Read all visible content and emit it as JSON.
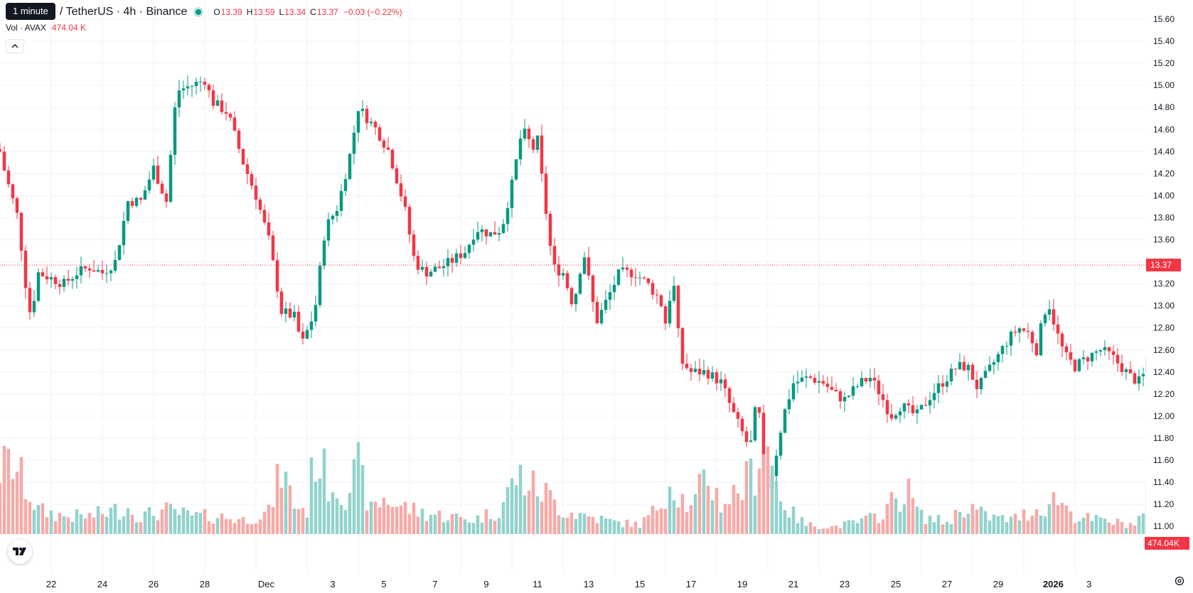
{
  "header": {
    "tooltip": "1 minute",
    "symbol": "/ TetherUS · 4h · Binance",
    "o_label": "O",
    "o_value": "13.39",
    "h_label": "H",
    "h_value": "13.59",
    "l_label": "L",
    "l_value": "13.34",
    "c_label": "C",
    "c_value": "13.37",
    "change": "−0.03 (−0.22%)"
  },
  "volume_legend": {
    "label": "Vol · AVAX",
    "value": "474.04 K"
  },
  "colors": {
    "up": "#089981",
    "down": "#f23645",
    "up_vol": "#92d2cc",
    "down_vol": "#f7a9a7",
    "grid": "#f0f3fa",
    "text": "#131722"
  },
  "icons": {
    "collapse": "chevron-up-icon",
    "logo": "tradingview-logo-icon",
    "settings": "gear-icon"
  },
  "chart_data": {
    "type": "candlestick",
    "interval": "4h",
    "y_axis": {
      "min": 10.9,
      "max": 15.7,
      "ticks": [
        "15.60",
        "15.40",
        "15.20",
        "15.00",
        "14.80",
        "14.60",
        "14.40",
        "14.20",
        "14.00",
        "13.80",
        "13.60",
        "13.40",
        "13.20",
        "13.00",
        "12.80",
        "12.60",
        "12.40",
        "12.20",
        "12.00",
        "11.80",
        "11.60",
        "11.40",
        "11.20",
        "11.00"
      ]
    },
    "x_axis": {
      "labels": [
        "22",
        "24",
        "26",
        "28",
        "Dec",
        "3",
        "5",
        "7",
        "9",
        "11",
        "13",
        "15",
        "17",
        "19",
        "21",
        "23",
        "25",
        "27",
        "29",
        "2026",
        "3"
      ]
    },
    "last_price": "13.37",
    "last_volume": "474.04K",
    "grid": true,
    "anchors": [
      [
        20.0,
        14.4
      ],
      [
        20.2,
        14.2
      ],
      [
        20.7,
        13.8
      ],
      [
        21.0,
        13.2
      ],
      [
        21.2,
        12.9
      ],
      [
        21.5,
        13.3
      ],
      [
        22.0,
        13.25
      ],
      [
        22.5,
        13.2
      ],
      [
        23.0,
        13.3
      ],
      [
        23.5,
        13.35
      ],
      [
        24.0,
        13.3
      ],
      [
        24.5,
        13.4
      ],
      [
        25.0,
        13.95
      ],
      [
        25.5,
        13.95
      ],
      [
        26.0,
        14.25
      ],
      [
        26.5,
        13.95
      ],
      [
        26.9,
        14.95
      ],
      [
        27.5,
        15.0
      ],
      [
        28.0,
        15.05
      ],
      [
        28.3,
        14.85
      ],
      [
        28.9,
        14.75
      ],
      [
        29.5,
        14.3
      ],
      [
        30.0,
        14.0
      ],
      [
        30.5,
        13.6
      ],
      [
        31.0,
        12.95
      ],
      [
        31.5,
        12.9
      ],
      [
        31.8,
        12.65
      ],
      [
        32.3,
        12.95
      ],
      [
        32.7,
        13.7
      ],
      [
        33.2,
        13.9
      ],
      [
        33.7,
        14.4
      ],
      [
        34.0,
        14.8
      ],
      [
        34.7,
        14.6
      ],
      [
        35.2,
        14.4
      ],
      [
        35.8,
        13.9
      ],
      [
        36.2,
        13.4
      ],
      [
        36.6,
        13.3
      ],
      [
        37.2,
        13.35
      ],
      [
        37.6,
        13.4
      ],
      [
        38.2,
        13.5
      ],
      [
        38.6,
        13.7
      ],
      [
        39.2,
        13.65
      ],
      [
        39.6,
        13.7
      ],
      [
        40.0,
        14.1
      ],
      [
        40.4,
        14.6
      ],
      [
        40.9,
        14.4
      ],
      [
        41.0,
        14.5
      ],
      [
        41.2,
        14.1
      ],
      [
        41.6,
        13.35
      ],
      [
        42.0,
        13.3
      ],
      [
        42.4,
        13.0
      ],
      [
        42.8,
        13.5
      ],
      [
        43.3,
        12.85
      ],
      [
        43.8,
        13.1
      ],
      [
        44.2,
        13.3
      ],
      [
        44.8,
        13.3
      ],
      [
        45.3,
        13.2
      ],
      [
        45.8,
        13.05
      ],
      [
        46.0,
        12.85
      ],
      [
        46.3,
        13.25
      ],
      [
        46.6,
        12.5
      ],
      [
        47.0,
        12.4
      ],
      [
        47.6,
        12.4
      ],
      [
        48.2,
        12.3
      ],
      [
        48.6,
        12.05
      ],
      [
        49.0,
        11.85
      ],
      [
        49.3,
        11.7
      ],
      [
        49.6,
        12.2
      ],
      [
        49.9,
        11.3
      ],
      [
        50.2,
        11.5
      ],
      [
        50.6,
        12.0
      ],
      [
        51.0,
        12.3
      ],
      [
        51.6,
        12.35
      ],
      [
        52.2,
        12.3
      ],
      [
        52.6,
        12.2
      ],
      [
        53.0,
        12.15
      ],
      [
        53.6,
        12.3
      ],
      [
        54.0,
        12.35
      ],
      [
        54.4,
        12.2
      ],
      [
        54.8,
        12.0
      ],
      [
        55.2,
        12.1
      ],
      [
        55.8,
        12.0
      ],
      [
        56.4,
        12.2
      ],
      [
        56.8,
        12.3
      ],
      [
        57.4,
        12.45
      ],
      [
        57.8,
        12.45
      ],
      [
        58.2,
        12.25
      ],
      [
        58.6,
        12.4
      ],
      [
        59.0,
        12.55
      ],
      [
        59.4,
        12.7
      ],
      [
        59.8,
        12.8
      ],
      [
        60.2,
        12.75
      ],
      [
        60.5,
        12.6
      ],
      [
        60.8,
        12.95
      ],
      [
        61.0,
        13.0
      ],
      [
        61.3,
        12.75
      ],
      [
        61.6,
        12.55
      ],
      [
        62.0,
        12.45
      ],
      [
        62.6,
        12.55
      ],
      [
        63.0,
        12.6
      ],
      [
        63.4,
        12.55
      ],
      [
        63.8,
        12.45
      ],
      [
        64.2,
        12.35
      ],
      [
        64.6,
        12.3
      ],
      [
        64.9,
        12.6
      ],
      [
        65.1,
        13.4
      ],
      [
        65.5,
        13.6
      ],
      [
        65.8,
        13.7
      ],
      [
        66.0,
        13.55
      ],
      [
        66.3,
        13.37
      ]
    ],
    "volume_anchors": [
      [
        20.0,
        0.55
      ],
      [
        20.5,
        0.6
      ],
      [
        21.0,
        0.4
      ],
      [
        21.5,
        0.2
      ],
      [
        22.5,
        0.15
      ],
      [
        23.5,
        0.15
      ],
      [
        24.5,
        0.2
      ],
      [
        25.0,
        0.22
      ],
      [
        25.5,
        0.15
      ],
      [
        26.5,
        0.2
      ],
      [
        27.5,
        0.15
      ],
      [
        28.5,
        0.15
      ],
      [
        29.5,
        0.12
      ],
      [
        30.5,
        0.18
      ],
      [
        31.0,
        0.55
      ],
      [
        31.5,
        0.25
      ],
      [
        32.0,
        0.2
      ],
      [
        32.3,
        0.7
      ],
      [
        32.8,
        0.45
      ],
      [
        33.5,
        0.35
      ],
      [
        34.0,
        0.55
      ],
      [
        34.5,
        0.2
      ],
      [
        35.0,
        0.3
      ],
      [
        35.5,
        0.25
      ],
      [
        36.5,
        0.18
      ],
      [
        37.5,
        0.15
      ],
      [
        38.5,
        0.12
      ],
      [
        39.5,
        0.2
      ],
      [
        40.2,
        0.5
      ],
      [
        40.8,
        0.4
      ],
      [
        41.3,
        0.35
      ],
      [
        42.0,
        0.2
      ],
      [
        43.0,
        0.15
      ],
      [
        44.0,
        0.1
      ],
      [
        45.0,
        0.08
      ],
      [
        45.6,
        0.2
      ],
      [
        46.2,
        0.45
      ],
      [
        47.0,
        0.2
      ],
      [
        47.6,
        0.5
      ],
      [
        48.2,
        0.25
      ],
      [
        49.0,
        0.4
      ],
      [
        49.5,
        0.55
      ],
      [
        49.9,
        0.85
      ],
      [
        50.3,
        0.45
      ],
      [
        50.8,
        0.2
      ],
      [
        51.5,
        0.08
      ],
      [
        52.5,
        0.06
      ],
      [
        53.5,
        0.1
      ],
      [
        54.3,
        0.15
      ],
      [
        55.0,
        0.3
      ],
      [
        55.5,
        0.35
      ],
      [
        56.0,
        0.15
      ],
      [
        57.0,
        0.1
      ],
      [
        57.8,
        0.25
      ],
      [
        58.5,
        0.15
      ],
      [
        59.5,
        0.12
      ],
      [
        60.2,
        0.18
      ],
      [
        61.0,
        0.25
      ],
      [
        61.3,
        0.32
      ],
      [
        62.0,
        0.15
      ],
      [
        62.8,
        0.12
      ],
      [
        63.5,
        0.1
      ],
      [
        64.3,
        0.08
      ],
      [
        64.8,
        0.2
      ],
      [
        65.0,
        0.8
      ],
      [
        65.3,
        0.55
      ],
      [
        65.6,
        0.3
      ],
      [
        66.0,
        0.25
      ],
      [
        66.3,
        0.24
      ]
    ]
  }
}
